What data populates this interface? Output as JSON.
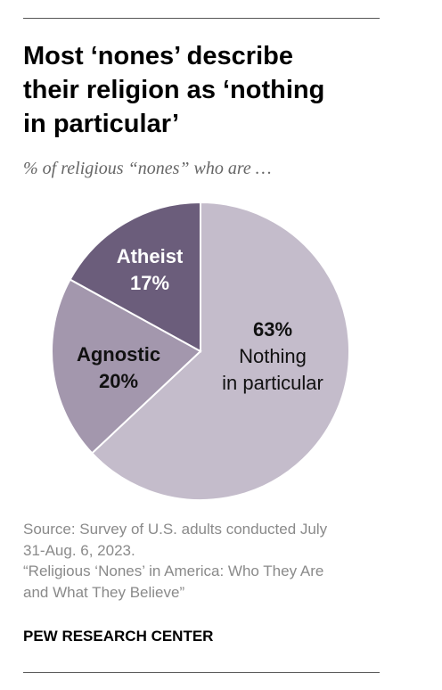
{
  "title": "Most ‘nones’ describe their religion as ‘nothing in particular’",
  "title_lines": [
    "Most ‘nones’ describe",
    "their religion as ‘nothing",
    "in particular’"
  ],
  "subtitle": "% of religious “nones” who are …",
  "chart_data": {
    "type": "pie",
    "title": "Most ‘nones’ describe their religion as ‘nothing in particular’",
    "subtitle": "% of religious “nones” who are …",
    "unit": "%",
    "slices": [
      {
        "name": "Nothing in particular",
        "label_lines": [
          "Nothing",
          "in particular"
        ],
        "value": 63,
        "value_label": "63%",
        "color": "#c4bccb",
        "text_color": "#111111"
      },
      {
        "name": "Agnostic",
        "label_lines": [
          "Agnostic"
        ],
        "value": 20,
        "value_label": "20%",
        "color": "#a397ad",
        "text_color": "#111111"
      },
      {
        "name": "Atheist",
        "label_lines": [
          "Atheist"
        ],
        "value": 17,
        "value_label": "17%",
        "color": "#6b5d7b",
        "text_color": "#ffffff"
      }
    ]
  },
  "source_lines": [
    "Source: Survey of U.S. adults conducted July",
    "31-Aug. 6, 2023.",
    "“Religious ‘Nones’ in America: Who They Are",
    "and What They Believe”"
  ],
  "brand": "PEW RESEARCH CENTER"
}
